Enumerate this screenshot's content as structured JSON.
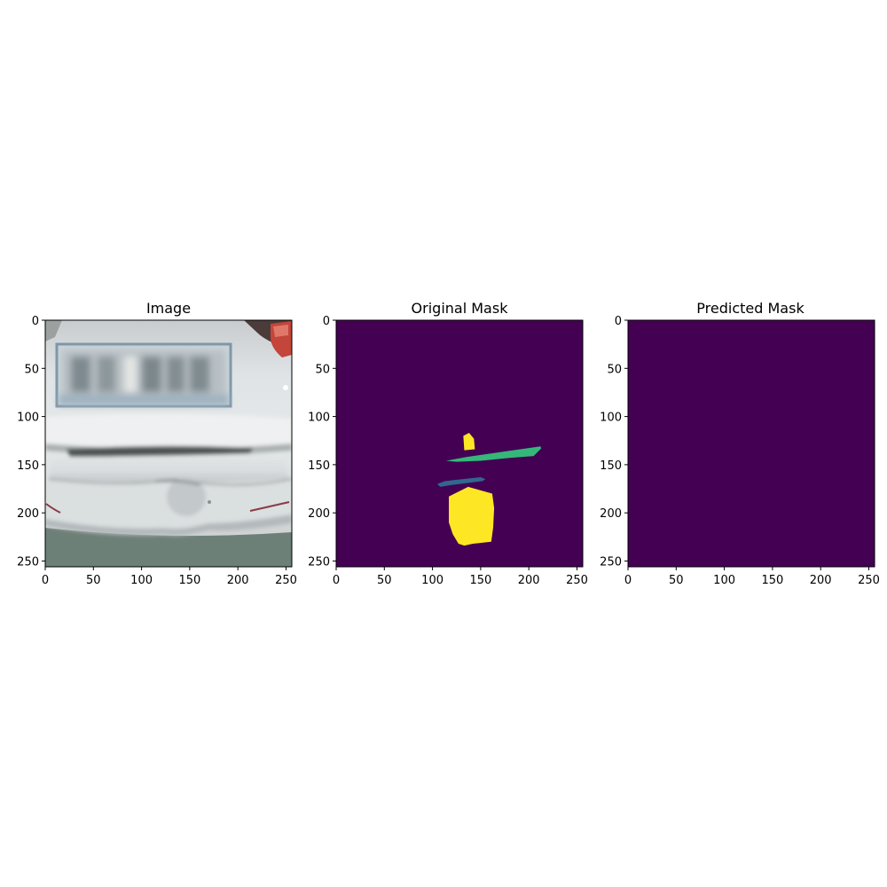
{
  "chart_data": [
    {
      "type": "image",
      "title": "Image",
      "xlim": [
        0,
        256
      ],
      "ylim": [
        256,
        0
      ],
      "xticks": [
        0,
        50,
        100,
        150,
        200,
        250
      ],
      "yticks": [
        0,
        50,
        100,
        150,
        200,
        250
      ],
      "content": "rear bumper photograph"
    },
    {
      "type": "heatmap",
      "title": "Original Mask",
      "xlim": [
        0,
        256
      ],
      "ylim": [
        256,
        0
      ],
      "xticks": [
        0,
        50,
        100,
        150,
        200,
        250
      ],
      "yticks": [
        0,
        50,
        100,
        150,
        200,
        250
      ],
      "background": "#440154",
      "regions": [
        {
          "color": "#fde725",
          "points": [
            [
              132,
              120
            ],
            [
              138,
              117
            ],
            [
              143,
              123
            ],
            [
              144,
              134
            ],
            [
              133,
              135
            ]
          ]
        },
        {
          "color": "#35b779",
          "points": [
            [
              114,
              146
            ],
            [
              135,
              142
            ],
            [
              212,
              131
            ],
            [
              213,
              133
            ],
            [
              205,
              141
            ],
            [
              180,
              143
            ],
            [
              150,
              146
            ],
            [
              125,
              147
            ]
          ]
        },
        {
          "color": "#31688e",
          "points": [
            [
              105,
              170
            ],
            [
              113,
              167
            ],
            [
              150,
              163
            ],
            [
              155,
              165
            ],
            [
              152,
              167
            ],
            [
              120,
              171
            ],
            [
              108,
              173
            ]
          ]
        },
        {
          "color": "#fde725",
          "points": [
            [
              117,
              183
            ],
            [
              137,
              173
            ],
            [
              162,
              180
            ],
            [
              164,
              195
            ],
            [
              163,
              215
            ],
            [
              161,
              230
            ],
            [
              142,
              232
            ],
            [
              133,
              234
            ],
            [
              127,
              232
            ],
            [
              121,
              222
            ],
            [
              117,
              210
            ]
          ]
        }
      ]
    },
    {
      "type": "heatmap",
      "title": "Predicted Mask",
      "xlim": [
        0,
        256
      ],
      "ylim": [
        256,
        0
      ],
      "xticks": [
        0,
        50,
        100,
        150,
        200,
        250
      ],
      "yticks": [
        0,
        50,
        100,
        150,
        200,
        250
      ],
      "background": "#440154",
      "regions": []
    }
  ]
}
